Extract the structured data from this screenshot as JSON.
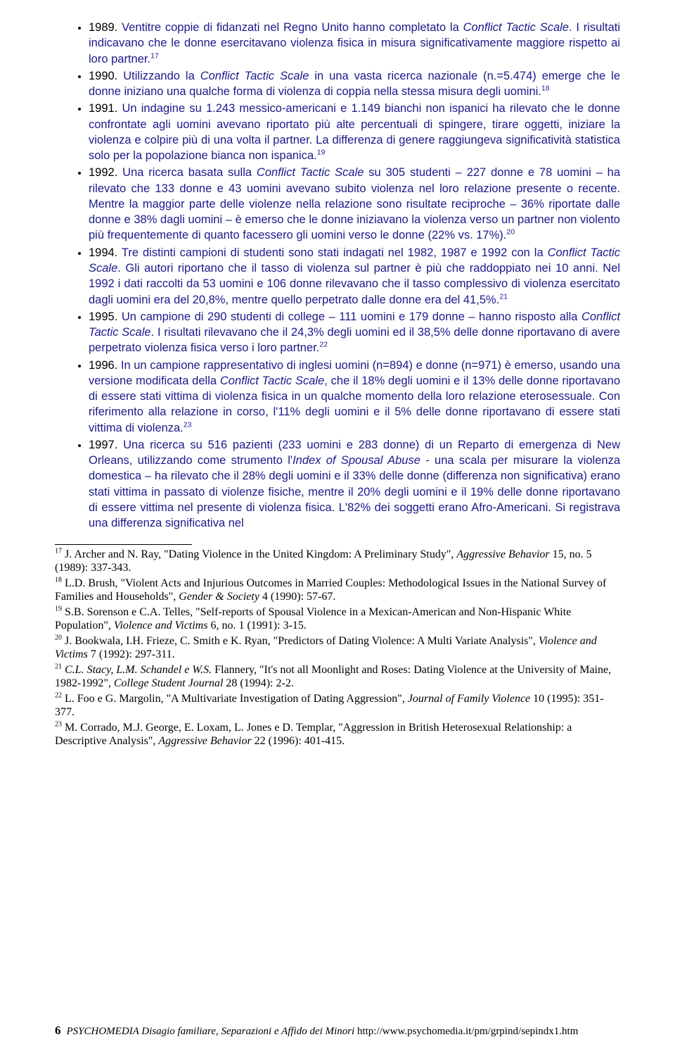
{
  "colors": {
    "body_text": "#1a1a8c",
    "black": "#000000",
    "background": "#ffffff"
  },
  "typography": {
    "body_font": "Verdana",
    "body_size_pt": 12,
    "footnote_font": "Times New Roman",
    "footnote_size_pt": 12
  },
  "bullets": [
    {
      "lead_black": "1989. ",
      "pre_italic": "Ventitre coppie di fidanzati nel Regno Unito hanno completato la ",
      "italic1": "Conflict Tactic Scale",
      "post1": ". I risultati indicavano che le donne esercitavano violenza fisica in misura significativamente maggiore rispetto ai loro partner.",
      "sup": "17"
    },
    {
      "lead_black": "1990. ",
      "pre_italic": "Utilizzando la ",
      "italic1": "Conflict Tactic Scale",
      "post1": " in una vasta ricerca nazionale (n.=5.474) emerge che le donne iniziano una qualche forma di violenza di coppia nella stessa misura degli uomini.",
      "sup": "18"
    },
    {
      "lead_black": "1991. ",
      "text": "Un indagine su 1.243 messico-americani e 1.149 bianchi non ispanici ha rilevato che le donne confrontate agli uomini avevano riportato più alte percentuali di spingere, tirare oggetti, iniziare la violenza e colpire più di una volta il partner. La differenza di genere raggiungeva significatività statistica solo per la popolazione bianca non ispanica.",
      "sup": "19"
    },
    {
      "lead_black": "1992. ",
      "pre_italic": "Una ricerca basata sulla ",
      "italic1": "Conflict Tactic Scale",
      "post1": " su 305 studenti – 227 donne e 78 uomini – ha rilevato che 133 donne e 43 uomini avevano subito violenza nel loro relazione presente o recente. Mentre la maggior parte delle violenze nella relazione sono risultate reciproche – 36% riportate dalle donne e 38% dagli uomini – è emerso che le donne iniziavano la violenza verso un partner non violento più frequentemente di quanto facessero gli uomini verso le donne (22% vs. 17%).",
      "sup": "20"
    },
    {
      "lead_black": "1994. ",
      "pre_italic": "Tre distinti campioni di studenti sono stati indagati nel 1982, 1987 e 1992 con la ",
      "italic1": "Conflict Tactic Scale",
      "post1": ". Gli autori riportano che il tasso di violenza sul partner è più che raddoppiato nei 10 anni. Nel 1992 i dati raccolti da 53 uomini e 106 donne rilevavano che il tasso complessivo di violenza esercitato dagli uomini era del 20,8%, mentre quello perpetrato dalle donne era del 41,5%.",
      "sup": "21"
    },
    {
      "lead_black": "1995. ",
      "pre_italic": "Un campione di 290 studenti di college – 111 uomini e 179 donne – hanno risposto alla ",
      "italic1": "Conflict Tactic Scale",
      "post1": ". I risultati rilevavano che il 24,3% degli uomini ed il 38,5% delle donne riportavano di avere perpetrato violenza fisica verso i loro partner.",
      "sup": "22"
    },
    {
      "lead_black": "1996. ",
      "pre_italic": "In un campione rappresentativo di inglesi uomini (n=894) e donne (n=971) è emerso, usando una versione modificata della ",
      "italic1": "Conflict Tactic Scale",
      "post1": ", che il 18% degli uomini e il 13% delle donne riportavano di essere stati vittima di violenza fisica in un qualche momento della loro relazione eterosessuale. Con riferimento alla relazione in corso, l'11% degli uomini e il 5% delle donne riportavano di essere stati vittima di violenza.",
      "sup": "23"
    },
    {
      "lead_black": "1997. ",
      "pre_italic": "Una ricerca su 516 pazienti (233 uomini e 283 donne) di un Reparto di emergenza di New Orleans, utilizzando come strumento l'",
      "italic1": "Index of Spousal Abuse",
      "post1": " - una scala per misurare la violenza domestica – ha rilevato che il 28% degli uomini e il 33% delle donne (differenza non significativa) erano stati vittima in passato di violenze fisiche, mentre il 20% degli uomini e il 19% delle donne riportavano di essere vittima nel presente di violenza fisica. L'82% dei soggetti erano Afro-Americani. Si registrava una differenza significativa nel"
    }
  ],
  "footnotes": [
    {
      "num": "17",
      "pre": " J. Archer and N. Ray, \"Dating Violence in the United Kingdom: A Preliminary Study\", ",
      "italic": "Aggressive Behavior",
      "post": " 15, no. 5 (1989): 337-343."
    },
    {
      "num": "18",
      "pre": " L.D. Brush, \"Violent Acts and Injurious Outcomes in Married Couples: Methodological Issues in the National Survey of Families and Households\", ",
      "italic": "Gender & Society",
      "post": " 4 (1990): 57-67."
    },
    {
      "num": "19",
      "pre": " S.B. Sorenson e C.A. Telles, \"Self-reports of Spousal Violence in a Mexican-American and Non-Hispanic White Population\", ",
      "italic": "Violence and Victims",
      "post": " 6, no. 1 (1991): 3-15."
    },
    {
      "num": "20",
      "pre": " J. Bookwala, I.H. Frieze, C. Smith e K. Ryan, \"Predictors of Dating Violence: A Multi Variate Analysis\", ",
      "italic": "Violence and Victims",
      "post": " 7 (1992): 297-311."
    },
    {
      "num": "21",
      "pre_italic_authors": " C.L. Stacy, L.M. Schandel e W.S.",
      "pre": " Flannery, \"It's not all Moonlight and Roses: Dating Violence at the University of Maine, 1982-1992\", ",
      "italic": "College Student Journal",
      "post": " 28 (1994): 2-2."
    },
    {
      "num": "22",
      "pre": " L. Foo e G. Margolin, \"A Multivariate Investigation of Dating Aggression\", ",
      "italic": "Journal of Family Violence",
      "post": " 10 (1995): 351-377."
    },
    {
      "num": "23",
      "pre": " M. Corrado, M.J. George, E. Loxam, L. Jones e D. Templar, \"Aggression in British Heterosexual Relationship: a Descriptive Analysis\", ",
      "italic": "Aggressive Behavior",
      "post": " 22 (1996): 401-415."
    }
  ],
  "footer": {
    "page_number": "6",
    "publication": "PSYCHOMEDIA  Disagio familiare, Separazioni e Affido dei Minori ",
    "url": "http://www.psychomedia.it/pm/grpind/sepindx1.htm"
  }
}
